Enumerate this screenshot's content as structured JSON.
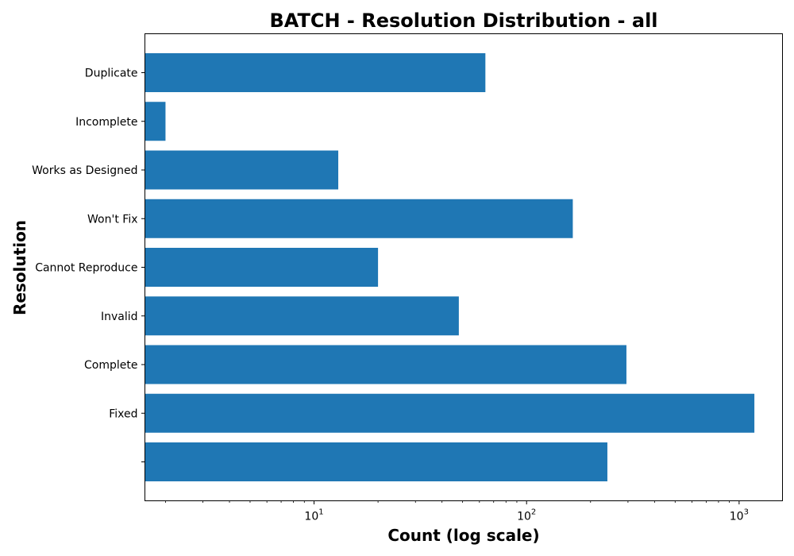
{
  "chart_data": {
    "type": "bar",
    "orientation": "horizontal",
    "title": "BATCH - Resolution Distribution - all",
    "xlabel": "Count (log scale)",
    "ylabel": "Resolution",
    "xscale": "log",
    "xlim": [
      1.6,
      1600
    ],
    "x_ticks": [
      {
        "value": 10,
        "base": "10",
        "exp": "1"
      },
      {
        "value": 100,
        "base": "10",
        "exp": "2"
      },
      {
        "value": 1000,
        "base": "10",
        "exp": "3"
      }
    ],
    "categories": [
      "",
      "Fixed",
      "Complete",
      "Invalid",
      "Cannot Reproduce",
      "Won't Fix",
      "Works as Designed",
      "Incomplete",
      "Duplicate"
    ],
    "values": [
      240,
      1180,
      295,
      48,
      20,
      165,
      13,
      2,
      64
    ],
    "bar_color": "#1f77b4",
    "grid": false,
    "legend": "none"
  }
}
